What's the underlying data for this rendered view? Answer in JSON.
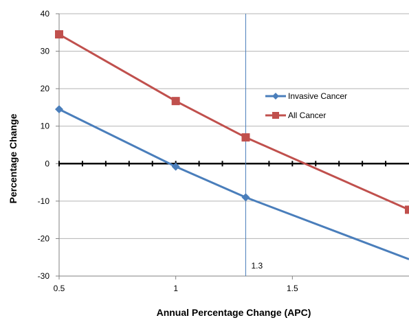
{
  "chart_data": {
    "type": "line",
    "title": "",
    "xlabel": "Annual Percentage Change (APC)",
    "ylabel": "Percentage Change",
    "xlim": [
      0.5,
      2.0
    ],
    "ylim": [
      -30,
      40
    ],
    "x_ticks": [
      0.5,
      1,
      1.5
    ],
    "x_tick_labels": [
      "0.5",
      "1",
      "1.5"
    ],
    "y_ticks": [
      -30,
      -20,
      -10,
      0,
      10,
      20,
      30,
      40
    ],
    "y_tick_labels": [
      "-30",
      "-20",
      "-10",
      "0",
      "10",
      "20",
      "30",
      "40"
    ],
    "zero_line_minor_ticks": [
      0.6,
      0.7,
      0.8,
      0.9,
      1.1,
      1.2,
      1.4,
      1.6,
      1.7,
      1.8,
      1.9
    ],
    "grid": true,
    "legend_position": "right",
    "series": [
      {
        "name": "Invasive Cancer",
        "color": "#4a7ebb",
        "marker": "diamond",
        "points": [
          [
            0.5,
            14.5
          ],
          [
            1.0,
            -0.8
          ],
          [
            1.3,
            -9.0
          ],
          [
            2.0,
            -25.5
          ]
        ],
        "marker_points": [
          [
            0.5,
            14.5
          ],
          [
            1.0,
            -0.8
          ],
          [
            1.3,
            -9.0
          ]
        ]
      },
      {
        "name": "All Cancer",
        "color": "#c0504d",
        "marker": "square",
        "points": [
          [
            0.5,
            34.5
          ],
          [
            1.0,
            16.7
          ],
          [
            1.3,
            7.0
          ],
          [
            2.0,
            -12.3
          ]
        ],
        "marker_points": [
          [
            0.5,
            34.5
          ],
          [
            1.0,
            16.7
          ],
          [
            1.3,
            7.0
          ],
          [
            2.0,
            -12.3
          ]
        ]
      }
    ],
    "vertical_line": {
      "x": 1.3,
      "label": "1.3",
      "color": "#4a7ebb"
    }
  }
}
